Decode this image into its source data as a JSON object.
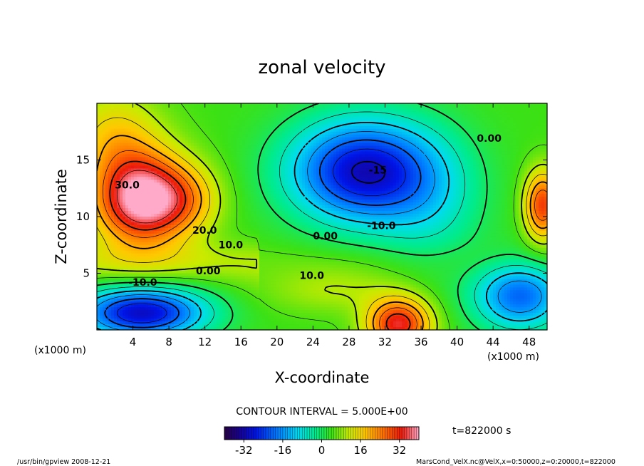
{
  "chart_data": {
    "type": "contour",
    "title": "zonal velocity",
    "xlabel": "X-coordinate",
    "ylabel": "Z-coordinate",
    "x_unit_left": "(x1000 m)",
    "x_unit_right": "(x1000 m)",
    "xlim": [
      0,
      50
    ],
    "ylim": [
      0,
      20
    ],
    "x_ticks": [
      "4",
      "8",
      "12",
      "16",
      "20",
      "24",
      "28",
      "32",
      "36",
      "40",
      "44",
      "48"
    ],
    "x_tick_values": [
      4,
      8,
      12,
      16,
      20,
      24,
      28,
      32,
      36,
      40,
      44,
      48
    ],
    "y_ticks": [
      "5",
      "10",
      "15"
    ],
    "y_tick_values": [
      5,
      10,
      15
    ],
    "contour_interval_text": "CONTOUR INTERVAL = 5.000E+00",
    "contour_labels": [
      {
        "text": "30.0",
        "x": 2,
        "y": 12.5
      },
      {
        "text": "20.0",
        "x": 10.6,
        "y": 8.5
      },
      {
        "text": "10.0",
        "x": 13.5,
        "y": 7.2
      },
      {
        "text": "0.00",
        "x": 11,
        "y": 4.9
      },
      {
        "text": "-10.0",
        "x": 3.5,
        "y": 3.9
      },
      {
        "text": "0.00",
        "x": 24,
        "y": 8.0
      },
      {
        "text": "10.0",
        "x": 22.5,
        "y": 4.5
      },
      {
        "text": "-10.0",
        "x": 30,
        "y": 8.9
      },
      {
        "text": "0.00",
        "x": 42.2,
        "y": 16.6
      },
      {
        "text": "-15",
        "x": 30.2,
        "y": 13.8
      }
    ],
    "colorbar": {
      "min": -40,
      "max": 40,
      "ticks": [
        "-32",
        "-16",
        "0",
        "16",
        "32"
      ],
      "tick_values": [
        -32,
        -16,
        0,
        16,
        32
      ]
    },
    "time_label": "t=822000 s",
    "field_features": [
      {
        "sign": "positive",
        "x": 5,
        "y": 11.5,
        "amplitude": 38
      },
      {
        "sign": "positive",
        "x": 2,
        "y": 17,
        "amplitude": 12
      },
      {
        "sign": "positive",
        "x": 10,
        "y": 11.5,
        "amplitude": 10
      },
      {
        "sign": "negative",
        "x": 29.5,
        "y": 14,
        "amplitude": 34
      },
      {
        "sign": "negative",
        "x": 37,
        "y": 11,
        "amplitude": 8
      },
      {
        "sign": "negative",
        "x": 5,
        "y": 1.5,
        "amplitude": 34
      },
      {
        "sign": "negative",
        "x": 47,
        "y": 3,
        "amplitude": 24
      },
      {
        "sign": "positive",
        "x": 33.5,
        "y": 0.5,
        "amplitude": 30
      },
      {
        "sign": "positive",
        "x": 49.5,
        "y": 11,
        "amplitude": 26
      },
      {
        "sign": "positive",
        "x": 26.5,
        "y": 3.5,
        "amplitude": 6
      }
    ]
  },
  "footer": {
    "left": "/usr/bin/gpview   2008-12-21",
    "right": "MarsCond_VelX.nc@VelX,x=0:50000,z=0:20000,t=822000"
  }
}
